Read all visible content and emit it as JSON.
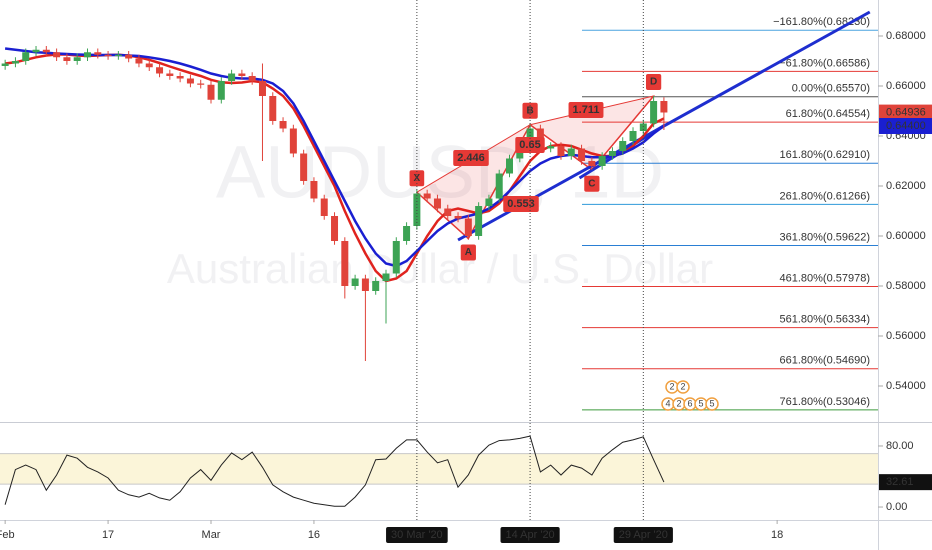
{
  "chart_data": [
    {
      "type": "candlestick",
      "watermark_title": "AUDUSD, 1D",
      "watermark_subtitle": "Australian Dollar / U.S. Dollar",
      "xlim": [
        -0.5,
        84.8
      ],
      "ylim": [
        0.5264,
        0.6944
      ],
      "yticks": [
        {
          "value": 0.54,
          "label": "0.54000"
        },
        {
          "value": 0.56,
          "label": "0.56000"
        },
        {
          "value": 0.58,
          "label": "0.58000"
        },
        {
          "value": 0.6,
          "label": "0.60000"
        },
        {
          "value": 0.62,
          "label": "0.62000"
        },
        {
          "value": 0.64,
          "label": "0.64000"
        },
        {
          "value": 0.66,
          "label": "0.66000"
        },
        {
          "value": 0.68,
          "label": "0.68000"
        }
      ],
      "grid": false,
      "up_color": "#3ca354",
      "down_color": "#e0433a",
      "x": [
        0,
        1,
        2,
        3,
        4,
        5,
        6,
        7,
        8,
        9,
        10,
        11,
        12,
        13,
        14,
        15,
        16,
        17,
        18,
        19,
        20,
        21,
        22,
        23,
        24,
        25,
        26,
        27,
        28,
        29,
        30,
        31,
        32,
        33,
        34,
        35,
        36,
        37,
        38,
        39,
        40,
        41,
        42,
        43,
        44,
        45,
        46,
        47,
        48,
        49,
        50,
        51,
        52,
        53,
        54,
        55,
        56,
        57,
        58,
        59,
        60,
        61,
        62,
        63,
        64
      ],
      "open": [
        0.668,
        0.669,
        0.67,
        0.6735,
        0.6745,
        0.6735,
        0.6715,
        0.67,
        0.6715,
        0.6735,
        0.6725,
        0.672,
        0.6725,
        0.671,
        0.669,
        0.6675,
        0.665,
        0.664,
        0.663,
        0.661,
        0.6605,
        0.6545,
        0.662,
        0.665,
        0.664,
        0.662,
        0.656,
        0.646,
        0.643,
        0.633,
        0.622,
        0.615,
        0.608,
        0.598,
        0.58,
        0.583,
        0.578,
        0.582,
        0.585,
        0.598,
        0.604,
        0.617,
        0.615,
        0.611,
        0.608,
        0.607,
        0.6,
        0.612,
        0.615,
        0.625,
        0.631,
        0.636,
        0.643,
        0.635,
        0.636,
        0.632,
        0.635,
        0.63,
        0.628,
        0.632,
        0.634,
        0.638,
        0.642,
        0.645,
        0.654
      ],
      "high": [
        0.6705,
        0.6715,
        0.675,
        0.676,
        0.676,
        0.675,
        0.673,
        0.673,
        0.675,
        0.675,
        0.674,
        0.674,
        0.674,
        0.6725,
        0.6705,
        0.669,
        0.6665,
        0.6655,
        0.6645,
        0.6625,
        0.662,
        0.6635,
        0.6665,
        0.6665,
        0.6655,
        0.669,
        0.6575,
        0.6475,
        0.6445,
        0.6345,
        0.6235,
        0.6165,
        0.6095,
        0.5995,
        0.5845,
        0.5845,
        0.5835,
        0.5865,
        0.5995,
        0.6055,
        0.6185,
        0.6185,
        0.6165,
        0.6125,
        0.6095,
        0.6085,
        0.6135,
        0.6165,
        0.6265,
        0.6325,
        0.6375,
        0.6445,
        0.6445,
        0.6375,
        0.6375,
        0.6365,
        0.6365,
        0.6315,
        0.6335,
        0.6355,
        0.6395,
        0.6435,
        0.6465,
        0.656,
        0.6555
      ],
      "low": [
        0.6665,
        0.6675,
        0.6685,
        0.672,
        0.672,
        0.67,
        0.6685,
        0.6685,
        0.67,
        0.671,
        0.6705,
        0.6705,
        0.6695,
        0.6675,
        0.666,
        0.6635,
        0.6625,
        0.6615,
        0.6595,
        0.659,
        0.653,
        0.653,
        0.6605,
        0.6625,
        0.6605,
        0.63,
        0.6445,
        0.6415,
        0.6315,
        0.6205,
        0.6135,
        0.6065,
        0.5965,
        0.575,
        0.5785,
        0.55,
        0.5765,
        0.565,
        0.5835,
        0.5965,
        0.6025,
        0.6135,
        0.6095,
        0.6065,
        0.6055,
        0.5985,
        0.5985,
        0.6105,
        0.6135,
        0.6235,
        0.6295,
        0.6345,
        0.6335,
        0.6335,
        0.6305,
        0.6305,
        0.6285,
        0.6265,
        0.6265,
        0.6305,
        0.6325,
        0.6365,
        0.6405,
        0.6435,
        0.6424
      ],
      "close": [
        0.669,
        0.67,
        0.6735,
        0.6745,
        0.6735,
        0.6715,
        0.67,
        0.6715,
        0.6735,
        0.6725,
        0.672,
        0.6725,
        0.671,
        0.669,
        0.6675,
        0.665,
        0.664,
        0.663,
        0.661,
        0.6605,
        0.6545,
        0.662,
        0.665,
        0.664,
        0.662,
        0.656,
        0.646,
        0.643,
        0.633,
        0.622,
        0.615,
        0.608,
        0.598,
        0.58,
        0.583,
        0.578,
        0.582,
        0.585,
        0.598,
        0.604,
        0.617,
        0.615,
        0.611,
        0.608,
        0.607,
        0.6,
        0.612,
        0.615,
        0.625,
        0.631,
        0.636,
        0.643,
        0.635,
        0.636,
        0.632,
        0.635,
        0.63,
        0.628,
        0.632,
        0.634,
        0.638,
        0.642,
        0.645,
        0.654,
        0.6494
      ],
      "moving_averages": [
        {
          "color": "#e0231e",
          "values": [
            0.669,
            0.6695,
            0.6705,
            0.6715,
            0.6722,
            0.6726,
            0.6726,
            0.6722,
            0.672,
            0.6722,
            0.6724,
            0.6725,
            0.6722,
            0.6715,
            0.6705,
            0.6692,
            0.6678,
            0.6665,
            0.6652,
            0.664,
            0.6625,
            0.6615,
            0.6612,
            0.6614,
            0.662,
            0.6615,
            0.659,
            0.656,
            0.651,
            0.644,
            0.636,
            0.628,
            0.62,
            0.61,
            0.601,
            0.593,
            0.586,
            0.582,
            0.583,
            0.586,
            0.593,
            0.6,
            0.606,
            0.61,
            0.611,
            0.61,
            0.609,
            0.61,
            0.613,
            0.618,
            0.624,
            0.63,
            0.634,
            0.636,
            0.6365,
            0.636,
            0.6345,
            0.633,
            0.632,
            0.632,
            0.633,
            0.636,
            0.64,
            0.645,
            0.647
          ]
        },
        {
          "color": "#1a1fd1",
          "values": [
            0.675,
            0.6745,
            0.674,
            0.6735,
            0.6733,
            0.673,
            0.6728,
            0.6726,
            0.6725,
            0.6724,
            0.6724,
            0.6724,
            0.6722,
            0.672,
            0.6715,
            0.6708,
            0.67,
            0.669,
            0.6678,
            0.6665,
            0.665,
            0.664,
            0.6633,
            0.663,
            0.663,
            0.6625,
            0.661,
            0.658,
            0.653,
            0.646,
            0.638,
            0.63,
            0.622,
            0.614,
            0.606,
            0.599,
            0.593,
            0.589,
            0.588,
            0.59,
            0.594,
            0.598,
            0.602,
            0.605,
            0.607,
            0.608,
            0.609,
            0.611,
            0.614,
            0.618,
            0.622,
            0.626,
            0.629,
            0.631,
            0.632,
            0.6325,
            0.632,
            0.6315,
            0.6315,
            0.632,
            0.633,
            0.635,
            0.6375,
            0.641,
            0.644
          ]
        }
      ],
      "trendlines": [
        {
          "color": "#1e2ecf",
          "x": [
            44,
            84
          ],
          "y": [
            0.5984,
            0.6896
          ]
        },
        {
          "color": "#1e2ecf",
          "x": [
            55.8,
            64.1
          ],
          "y": [
            0.6232,
            0.6444
          ]
        }
      ],
      "fib_levels": [
        {
          "value": 0.6823,
          "label": "−161.80%(0.68230)",
          "color": "#4aa3df"
        },
        {
          "value": 0.66586,
          "label": "−61.80%(0.66586)",
          "color": "#e53935"
        },
        {
          "value": 0.6557,
          "label": "0.00%(0.65570)",
          "color": "#555555"
        },
        {
          "value": 0.64554,
          "label": "61.80%(0.64554)",
          "color": "#e53935"
        },
        {
          "value": 0.6291,
          "label": "161.80%(0.62910)",
          "color": "#2a7fd4"
        },
        {
          "value": 0.61266,
          "label": "261.80%(0.61266)",
          "color": "#2f9ad9"
        },
        {
          "value": 0.59622,
          "label": "361.80%(0.59622)",
          "color": "#2a7fd4"
        },
        {
          "value": 0.57978,
          "label": "461.80%(0.57978)",
          "color": "#e53935"
        },
        {
          "value": 0.56334,
          "label": "561.80%(0.56334)",
          "color": "#e53935"
        },
        {
          "value": 0.5469,
          "label": "661.80%(0.54690)",
          "color": "#e53935"
        },
        {
          "value": 0.53046,
          "label": "761.80%(0.53046)",
          "color": "#3c9a3c"
        }
      ],
      "pattern": {
        "color": "#e53935",
        "points": [
          {
            "label": "X",
            "x": 40,
            "y": 0.6175
          },
          {
            "label": "A",
            "x": 45,
            "y": 0.599
          },
          {
            "label": "B",
            "x": 51,
            "y": 0.6445
          },
          {
            "label": "C",
            "x": 57,
            "y": 0.6265
          },
          {
            "label": "D",
            "x": 63,
            "y": 0.656
          }
        ],
        "ratios": [
          "2.446",
          "0.553",
          "0.65",
          "1.711"
        ]
      },
      "last_price": 0.64936,
      "last_price_color": "#e0433a",
      "ma_price": {
        "value": 0.644,
        "label": "0.64400"
      },
      "ma_price_color": "#1a1fd1",
      "events": {
        "top": [
          "2",
          "2"
        ],
        "bottom": [
          "4",
          "2",
          "6",
          "5",
          "5"
        ]
      }
    },
    {
      "type": "line",
      "color": "#222222",
      "xlim": [
        -0.5,
        84.8
      ],
      "xticks": [
        {
          "value": 0,
          "label": "Feb"
        },
        {
          "value": 10,
          "label": "17"
        },
        {
          "value": 20,
          "label": "Mar"
        },
        {
          "value": 30,
          "label": "16"
        },
        {
          "value": 40,
          "label": "30 Mar '20",
          "highlight": true
        },
        {
          "value": 51,
          "label": "14 Apr '20",
          "highlight": true
        },
        {
          "value": 62,
          "label": "29 Apr '20",
          "highlight": true
        },
        {
          "value": 75,
          "label": "18"
        }
      ],
      "ylim": [
        -17,
        107.5
      ],
      "yticks": [
        {
          "value": 0,
          "label": "0.00"
        },
        {
          "value": 80,
          "label": "80.00"
        }
      ],
      "band": [
        30,
        70
      ],
      "band_color": "#fbf5d9",
      "x": [
        0,
        1,
        2,
        3,
        4,
        5,
        6,
        7,
        8,
        9,
        10,
        11,
        12,
        13,
        14,
        15,
        16,
        17,
        18,
        19,
        20,
        21,
        22,
        23,
        24,
        25,
        26,
        27,
        28,
        29,
        30,
        31,
        32,
        33,
        34,
        35,
        36,
        37,
        38,
        39,
        40,
        41,
        42,
        43,
        44,
        45,
        46,
        47,
        48,
        49,
        50,
        51,
        52,
        53,
        54,
        55,
        56,
        57,
        58,
        59,
        60,
        61,
        62,
        63,
        64
      ],
      "values": [
        3,
        49,
        55,
        49,
        22,
        42,
        68,
        64,
        52,
        46,
        38,
        22,
        16,
        13,
        18,
        12,
        9,
        20,
        38,
        49,
        35,
        55,
        71,
        62,
        72,
        52,
        29,
        20,
        13,
        9,
        5,
        3,
        1,
        1,
        13,
        29,
        62,
        63,
        77,
        88,
        88,
        72,
        58,
        62,
        26,
        42,
        68,
        81,
        87,
        88,
        90,
        93,
        46,
        55,
        42,
        55,
        51,
        42,
        64,
        75,
        85,
        88,
        92,
        62,
        32.61
      ]
    }
  ]
}
